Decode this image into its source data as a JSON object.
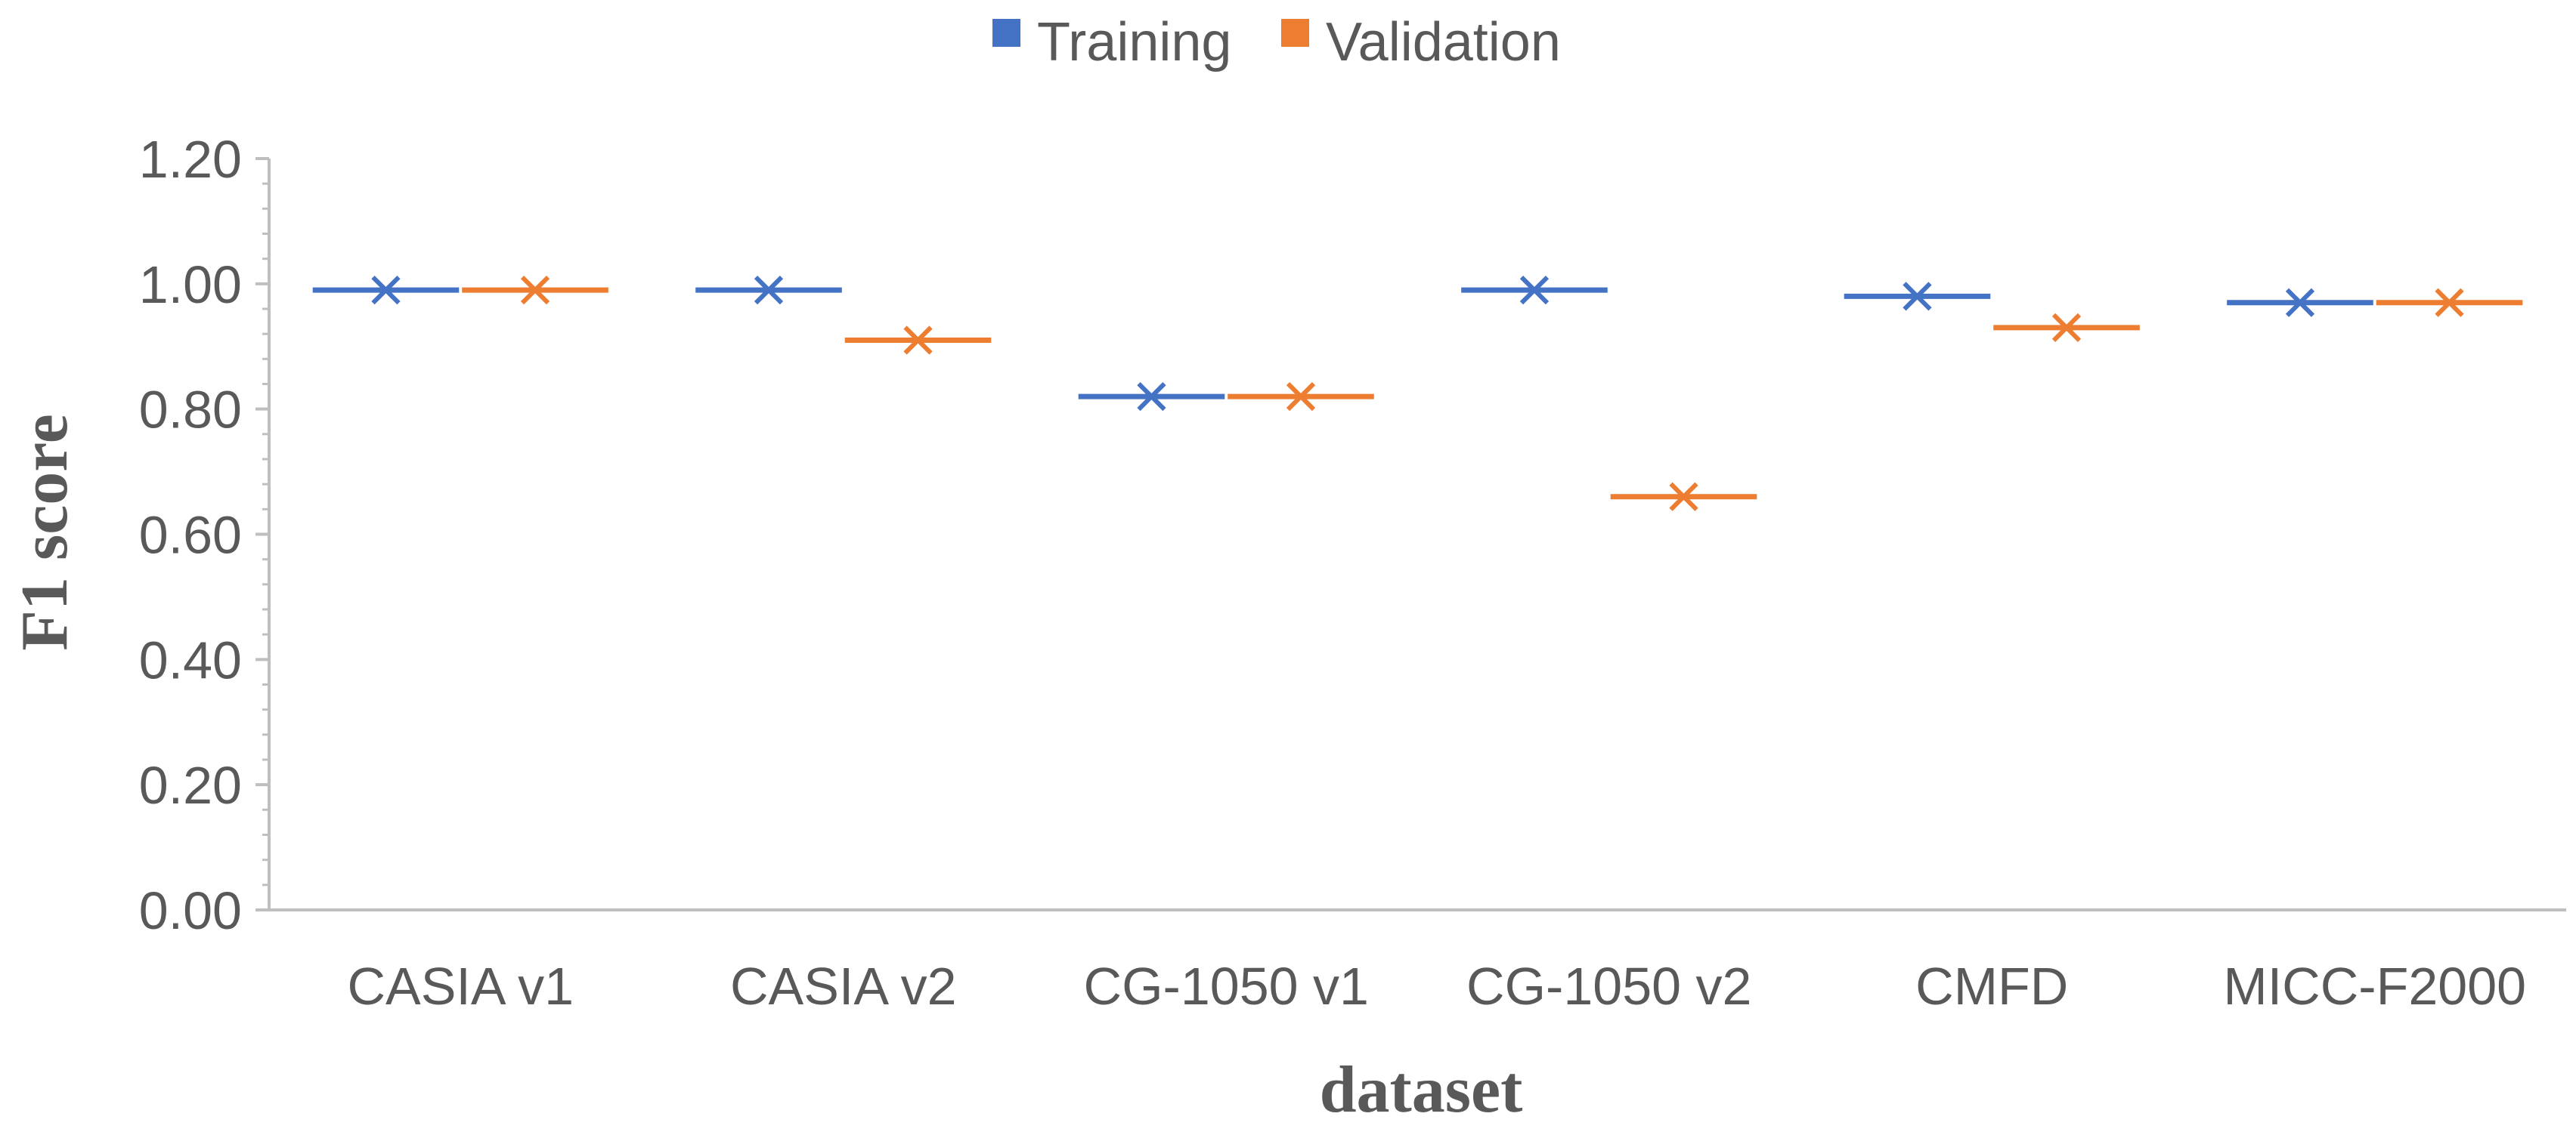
{
  "chart_data": {
    "type": "scatter",
    "title": "",
    "xlabel": "dataset",
    "ylabel": "F1 score",
    "categories": [
      "CASIA v1",
      "CASIA v2",
      "CG-1050 v1",
      "CG-1050 v2",
      "CMFD",
      "MICC-F2000"
    ],
    "series": [
      {
        "name": "Training",
        "color": "#4472C4",
        "values": [
          0.99,
          0.99,
          0.82,
          0.99,
          0.98,
          0.97
        ]
      },
      {
        "name": "Validation",
        "color": "#ED7D31",
        "values": [
          0.99,
          0.91,
          0.82,
          0.66,
          0.93,
          0.97
        ]
      }
    ],
    "ylim": [
      0,
      1.2
    ],
    "yticks": [
      "0.00",
      "0.20",
      "0.40",
      "0.60",
      "0.80",
      "1.00",
      "1.20"
    ],
    "grid": false,
    "legend_position": "top",
    "marker": "x-with-horizontal-dash"
  }
}
